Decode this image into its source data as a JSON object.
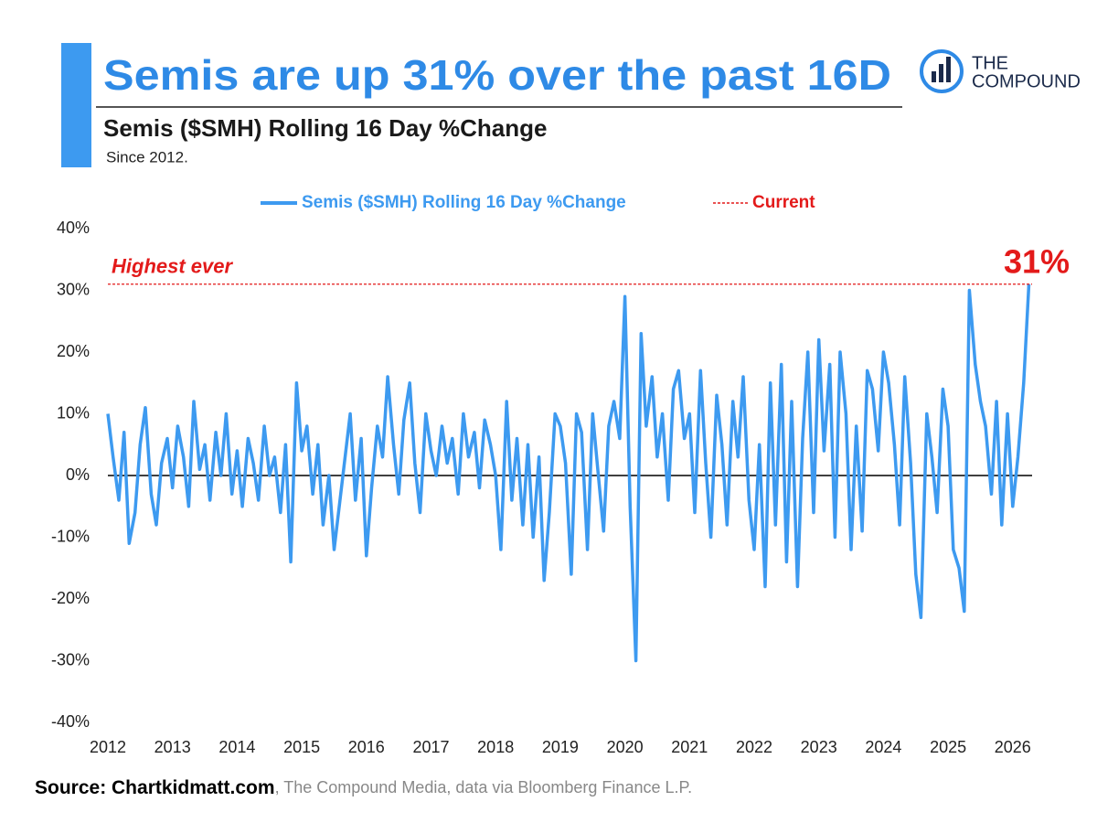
{
  "chart_data": {
    "type": "line",
    "title": "Semis are up 31% over the past 16D",
    "subtitle": "Semis ($SMH) Rolling 16 Day %Change",
    "note": "Since 2012.",
    "logo": [
      "THE",
      "COMPOUND"
    ],
    "source": {
      "bold": "Source: Chartkidmatt.com",
      "rest": ", The Compound Media, data via Bloomberg Finance L.P."
    },
    "annotation": "Highest ever",
    "reference_line": {
      "name": "Current",
      "value": 31,
      "value_label": "31%",
      "color": "#e31a1a"
    },
    "x": [
      2012,
      2012.08,
      2012.17,
      2012.25,
      2012.33,
      2012.42,
      2012.5,
      2012.58,
      2012.67,
      2012.75,
      2012.83,
      2012.92,
      2013,
      2013.08,
      2013.17,
      2013.25,
      2013.33,
      2013.42,
      2013.5,
      2013.58,
      2013.67,
      2013.75,
      2013.83,
      2013.92,
      2014,
      2014.08,
      2014.17,
      2014.25,
      2014.33,
      2014.42,
      2014.5,
      2014.58,
      2014.67,
      2014.75,
      2014.83,
      2014.92,
      2015,
      2015.08,
      2015.17,
      2015.25,
      2015.33,
      2015.42,
      2015.5,
      2015.58,
      2015.67,
      2015.75,
      2015.83,
      2015.92,
      2016,
      2016.08,
      2016.17,
      2016.25,
      2016.33,
      2016.42,
      2016.5,
      2016.58,
      2016.67,
      2016.75,
      2016.83,
      2016.92,
      2017,
      2017.08,
      2017.17,
      2017.25,
      2017.33,
      2017.42,
      2017.5,
      2017.58,
      2017.67,
      2017.75,
      2017.83,
      2017.92,
      2018,
      2018.08,
      2018.17,
      2018.25,
      2018.33,
      2018.42,
      2018.5,
      2018.58,
      2018.67,
      2018.75,
      2018.83,
      2018.92,
      2019,
      2019.08,
      2019.17,
      2019.25,
      2019.33,
      2019.42,
      2019.5,
      2019.58,
      2019.67,
      2019.75,
      2019.83,
      2019.92,
      2020,
      2020.08,
      2020.17,
      2020.25,
      2020.33,
      2020.42,
      2020.5,
      2020.58,
      2020.67,
      2020.75,
      2020.83,
      2020.92,
      2021,
      2021.08,
      2021.17,
      2021.25,
      2021.33,
      2021.42,
      2021.5,
      2021.58,
      2021.67,
      2021.75,
      2021.83,
      2021.92,
      2022,
      2022.08,
      2022.17,
      2022.25,
      2022.33,
      2022.42,
      2022.5,
      2022.58,
      2022.67,
      2022.75,
      2022.83,
      2022.92,
      2023,
      2023.08,
      2023.17,
      2023.25,
      2023.33,
      2023.42,
      2023.5,
      2023.58,
      2023.67,
      2023.75,
      2023.83,
      2023.92,
      2024,
      2024.08,
      2024.17,
      2024.25,
      2024.33,
      2024.42,
      2024.5,
      2024.58,
      2024.67,
      2024.75,
      2024.83,
      2024.92,
      2025,
      2025.08,
      2025.17,
      2025.25,
      2025.33,
      2025.42,
      2025.5,
      2025.58,
      2025.67,
      2025.75,
      2025.83,
      2025.92,
      2026,
      2026.08,
      2026.17,
      2026.25
    ],
    "series": [
      {
        "name": "Semis ($SMH) Rolling 16 Day %Change",
        "color": "#3d9af0",
        "values": [
          10,
          3,
          -4,
          7,
          -11,
          -6,
          5,
          11,
          -3,
          -8,
          2,
          6,
          -2,
          8,
          3,
          -5,
          12,
          1,
          5,
          -4,
          7,
          0,
          10,
          -3,
          4,
          -5,
          6,
          2,
          -4,
          8,
          0,
          3,
          -6,
          5,
          -14,
          15,
          4,
          8,
          -3,
          5,
          -8,
          0,
          -12,
          -5,
          3,
          10,
          -4,
          6,
          -13,
          -2,
          8,
          3,
          16,
          5,
          -3,
          9,
          15,
          2,
          -6,
          10,
          4,
          0,
          8,
          2,
          6,
          -3,
          10,
          3,
          7,
          -2,
          9,
          5,
          0,
          -12,
          12,
          -4,
          6,
          -8,
          5,
          -10,
          3,
          -17,
          -6,
          10,
          8,
          2,
          -16,
          10,
          7,
          -12,
          10,
          1,
          -9,
          8,
          12,
          6,
          29,
          -5,
          -30,
          23,
          8,
          16,
          3,
          10,
          -4,
          14,
          17,
          6,
          10,
          -6,
          17,
          2,
          -10,
          13,
          5,
          -8,
          12,
          3,
          16,
          -4,
          -12,
          5,
          -18,
          15,
          -8,
          18,
          -14,
          12,
          -18,
          6,
          20,
          -6,
          22,
          4,
          18,
          -10,
          20,
          10,
          -12,
          8,
          -9,
          17,
          14,
          4,
          20,
          15,
          5,
          -8,
          16,
          2,
          -16,
          -23,
          10,
          3,
          -6,
          14,
          8,
          -12,
          -15,
          -22,
          30,
          18,
          12,
          8,
          -3,
          12,
          -8,
          10,
          -5,
          3,
          15,
          31
        ]
      }
    ],
    "xlim": [
      2012,
      2026.3
    ],
    "xticks": [
      2012,
      2013,
      2014,
      2015,
      2016,
      2017,
      2018,
      2019,
      2020,
      2021,
      2022,
      2023,
      2024,
      2025,
      2026
    ],
    "ylim": [
      -40,
      40
    ],
    "yticks": [
      {
        "value": 40,
        "label": "40%"
      },
      {
        "value": 30,
        "label": "30%"
      },
      {
        "value": 20,
        "label": "20%"
      },
      {
        "value": 10,
        "label": "10%"
      },
      {
        "value": 0,
        "label": "0%"
      },
      {
        "value": -10,
        "label": "-10%"
      },
      {
        "value": -20,
        "label": "-20%"
      },
      {
        "value": -30,
        "label": "-30%"
      },
      {
        "value": -40,
        "label": "-40%"
      }
    ],
    "grid": false,
    "zero_line": true
  }
}
